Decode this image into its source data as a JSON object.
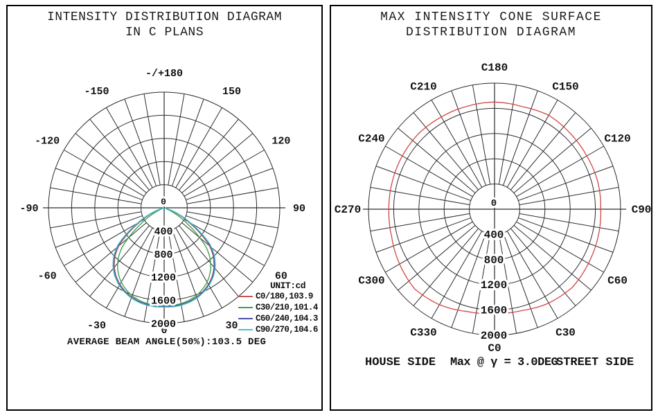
{
  "left_panel": {
    "title_line1": "INTENSITY DISTRIBUTION DIAGRAM",
    "title_line2": "IN C PLANS",
    "legend_title": "UNIT:cd",
    "footer": "AVERAGE BEAM ANGLE(50%):103.5 DEG"
  },
  "right_panel": {
    "title_line1": "MAX INTENSITY CONE SURFACE",
    "title_line2": "DISTRIBUTION DIAGRAM",
    "house_side": "HOUSE SIDE",
    "max_note": "Max @ γ = 3.0DEG",
    "street_side": "STREET SIDE"
  },
  "chart_data": [
    {
      "type": "line",
      "polar": true,
      "title": "INTENSITY DISTRIBUTION DIAGRAM IN C PLANS",
      "units": "cd",
      "ring_values": [
        400,
        800,
        1200,
        1600,
        2000
      ],
      "center_label": "0",
      "gamma_zero_direction": "down",
      "angle_labels": [
        [
          180,
          "-/+180"
        ],
        [
          -150,
          "-150"
        ],
        [
          150,
          "150"
        ],
        [
          -120,
          "-120"
        ],
        [
          120,
          "120"
        ],
        [
          -90,
          "-90"
        ],
        [
          90,
          "90"
        ],
        [
          -60,
          "-60"
        ],
        [
          60,
          "60"
        ],
        [
          -30,
          "-30"
        ],
        [
          30,
          "30"
        ],
        [
          0,
          "0"
        ]
      ],
      "average_beam_angle_deg": 103.5,
      "base_profile_gamma_deg": [
        0,
        5,
        10,
        15,
        20,
        25,
        30,
        35,
        40,
        45,
        48,
        50,
        52,
        55,
        58,
        60,
        63,
        66,
        69,
        72,
        74
      ],
      "base_profile_cd": [
        1700,
        1705,
        1695,
        1675,
        1640,
        1590,
        1525,
        1440,
        1330,
        1190,
        1080,
        1000,
        880,
        710,
        540,
        450,
        330,
        215,
        115,
        30,
        0
      ],
      "series": [
        {
          "label": "C0/180,103.9",
          "plane": "C0/180",
          "beam_angle_deg": 103.9,
          "color": "#cc5252"
        },
        {
          "label": "C30/210,101.4",
          "plane": "C30/210",
          "beam_angle_deg": 101.4,
          "color": "#3aa352"
        },
        {
          "label": "C60/240,104.3",
          "plane": "C60/240",
          "beam_angle_deg": 104.3,
          "color": "#4a4aa6"
        },
        {
          "label": "C90/270,104.6",
          "plane": "C90/270",
          "beam_angle_deg": 104.6,
          "color": "#49c5c5"
        }
      ]
    },
    {
      "type": "line",
      "polar": true,
      "title": "MAX INTENSITY CONE SURFACE DISTRIBUTION DIAGRAM",
      "units": "cd",
      "ring_values": [
        400,
        800,
        1200,
        1600,
        2000
      ],
      "center_label": "0",
      "c_plane_labels": [
        "C0",
        "C30",
        "C60",
        "C90",
        "C120",
        "C150",
        "C180",
        "C210",
        "C240",
        "C270",
        "C300",
        "C330"
      ],
      "max_at": "γ = 3.0DEG",
      "color": "#d04545",
      "c_angles_deg": [
        0,
        15,
        30,
        45,
        60,
        75,
        90,
        105,
        120,
        135,
        150,
        165,
        180,
        195,
        210,
        225,
        240,
        255,
        270,
        285,
        300,
        315,
        330,
        345
      ],
      "max_intensity_cd": [
        1655,
        1665,
        1720,
        1750,
        1720,
        1700,
        1685,
        1695,
        1690,
        1700,
        1720,
        1685,
        1700,
        1690,
        1690,
        1700,
        1690,
        1680,
        1677,
        1690,
        1740,
        1790,
        1750,
        1680
      ]
    }
  ]
}
